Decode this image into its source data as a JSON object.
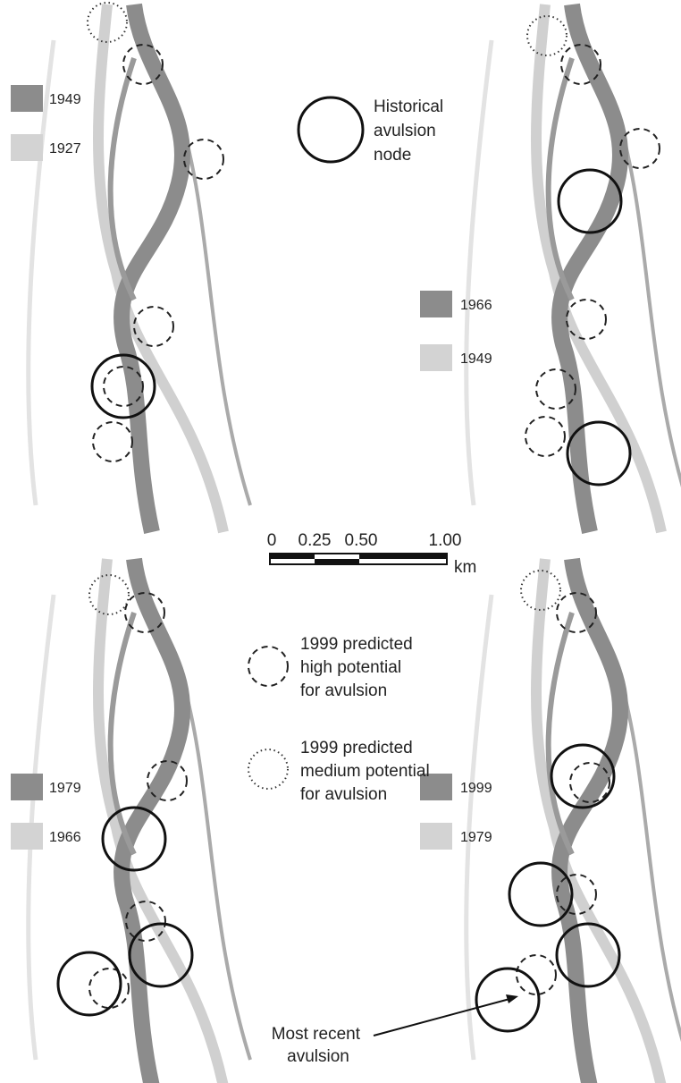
{
  "panels": [
    {
      "legend": [
        "1949",
        "1927"
      ]
    },
    {
      "legend": [
        "1966",
        "1949"
      ]
    },
    {
      "legend": [
        "1979",
        "1966"
      ]
    },
    {
      "legend": [
        "1999",
        "1979"
      ]
    }
  ],
  "key": {
    "historical": [
      "Historical",
      "avulsion",
      "node"
    ],
    "high": [
      "1999 predicted",
      "high potential",
      "for avulsion"
    ],
    "medium": [
      "1999 predicted",
      "medium potential",
      "for avulsion"
    ]
  },
  "scale_bar": {
    "labels": [
      "0",
      "0.25",
      "0.50",
      "1.00"
    ],
    "unit": "km"
  },
  "annotation": [
    "Most recent",
    "avulsion"
  ]
}
